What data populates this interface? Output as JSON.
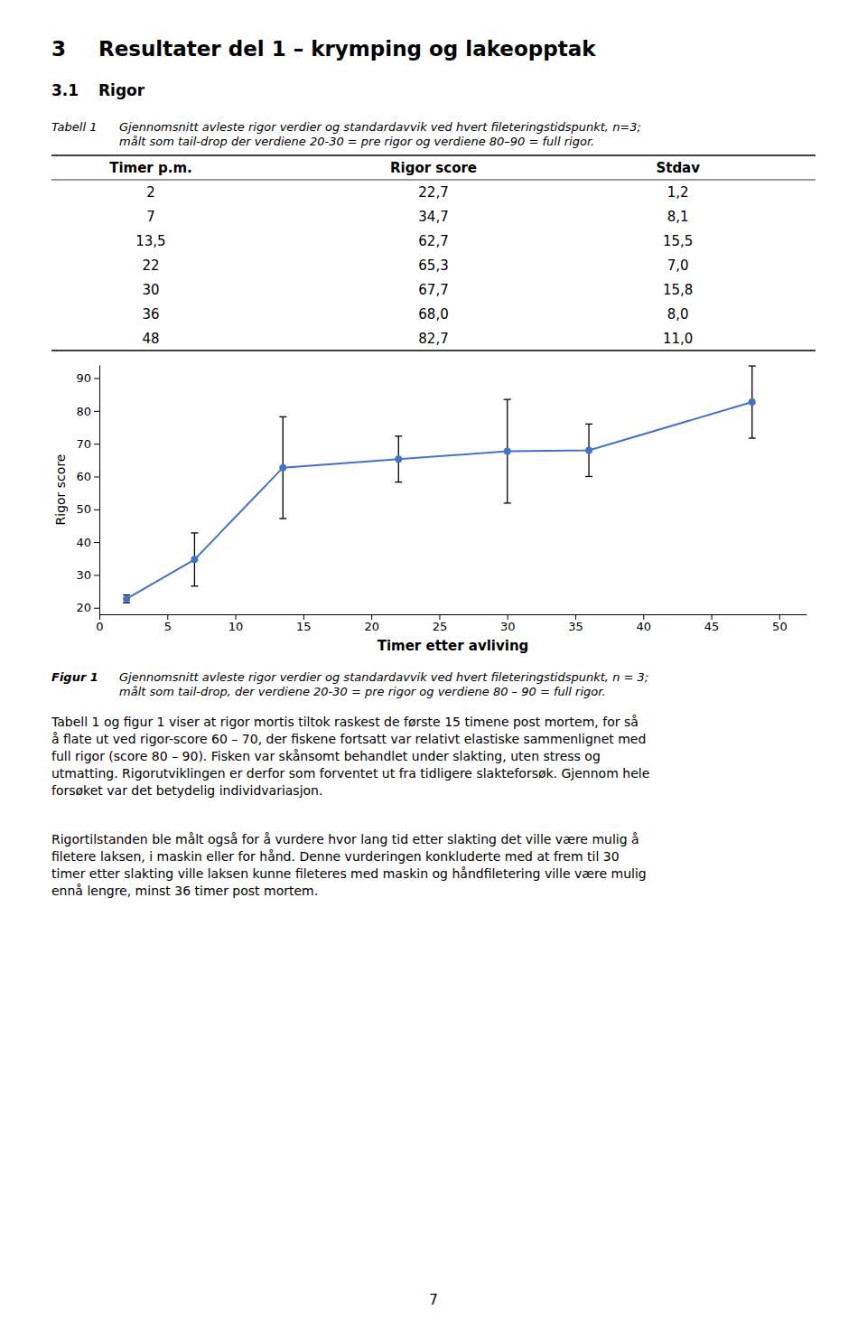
{
  "page": {
    "title_num": "3",
    "title_text": "Resultater del 1 – krymping og lakeopptak",
    "section_num": "3.1",
    "section_text": "Rigor",
    "table_caption_label": "Tabell 1",
    "table_caption_lines": [
      "Gjennomsnitt avleste rigor verdier og standardavvik ved hvert fileteringstidspunkt, n=3;",
      "målt som tail-drop der verdiene 20-30 = pre rigor og verdiene 80–90 = full rigor."
    ],
    "table": {
      "headers": [
        "Timer p.m.",
        "Rigor score",
        "Stdav"
      ],
      "rows": [
        [
          "2",
          "22,7",
          "1,2"
        ],
        [
          "7",
          "34,7",
          "8,1"
        ],
        [
          "13,5",
          "62,7",
          "15,5"
        ],
        [
          "22",
          "65,3",
          "7,0"
        ],
        [
          "30",
          "67,7",
          "15,8"
        ],
        [
          "36",
          "68,0",
          "8,0"
        ],
        [
          "48",
          "82,7",
          "11,0"
        ]
      ]
    },
    "figure_caption_label": "Figur 1",
    "figure_caption_lines": [
      "Gjennomsnitt avleste rigor verdier og standardavvik ved hvert fileteringstidspunkt, n = 3;",
      "målt som tail-drop, der verdiene 20-30 = pre rigor og verdiene 80 – 90 = full rigor."
    ],
    "body": [
      [
        "Tabell 1 og figur 1 viser at rigor mortis tiltok raskest de første 15 timene post mortem, for så",
        "å flate ut ved rigor-score 60 – 70, der fiskene fortsatt var relativt elastiske sammenlignet med",
        "full rigor (score 80 – 90). Fisken var skånsomt behandlet under slakting, uten stress og",
        "utmatting. Rigorutviklingen er derfor som forventet ut fra tidligere slakteforsøk. Gjennom hele",
        "forsøket var det betydelig individvariasjon."
      ],
      [
        "Rigortilstanden ble målt også for å vurdere hvor lang tid etter slakting det ville være mulig å",
        "filetere laksen, i maskin eller for hånd. Denne vurderingen konkluderte med at frem til 30",
        "timer etter slakting ville laksen kunne fileteres med maskin og håndfiletering ville være mulig",
        "ennå lengre, minst 36 timer post mortem."
      ]
    ],
    "page_number": "7"
  },
  "chart_data": {
    "type": "line",
    "x": [
      2,
      7,
      13.5,
      22,
      30,
      36,
      48
    ],
    "values": [
      22.7,
      34.7,
      62.7,
      65.3,
      67.7,
      68.0,
      82.7
    ],
    "errors": [
      1.2,
      8.1,
      15.5,
      7.0,
      15.8,
      8.0,
      11.0
    ],
    "color": "#4472C4",
    "marker": "circle",
    "line_style": "solid",
    "x_label": "Timer etter avliving",
    "y_label": "Rigor score",
    "xlim": [
      0,
      52
    ],
    "ylim": [
      18,
      94
    ],
    "xticks": [
      0,
      5,
      10,
      15,
      20,
      25,
      30,
      35,
      40,
      45,
      50
    ],
    "yticks": [
      20,
      30,
      40,
      50,
      60,
      70,
      80,
      90
    ],
    "grid": false
  }
}
